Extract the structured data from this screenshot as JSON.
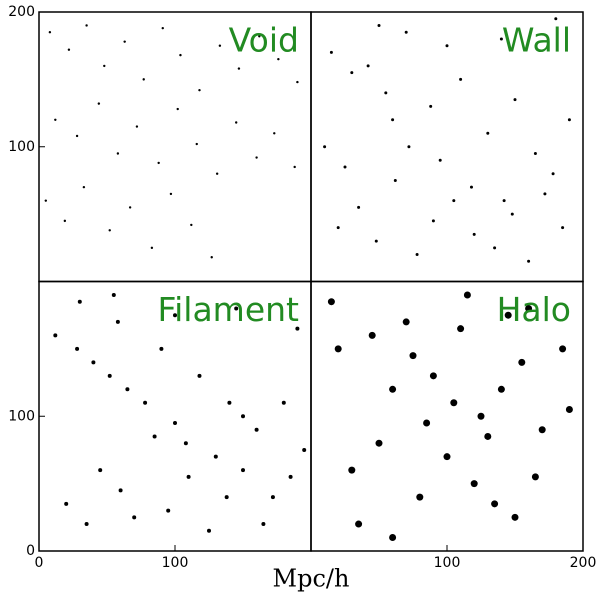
{
  "chart_data": [
    {
      "type": "scatter",
      "title": "Void",
      "color": "#000000",
      "title_color": "#228b22",
      "marker_size": 1.2,
      "x": [
        8,
        22,
        35,
        48,
        63,
        77,
        91,
        104,
        118,
        133,
        147,
        162,
        176,
        190,
        12,
        28,
        44,
        58,
        72,
        88,
        102,
        116,
        131,
        145,
        160,
        173,
        188,
        5,
        19,
        33,
        52,
        67,
        83,
        97,
        112,
        127
      ],
      "y": [
        185,
        172,
        190,
        160,
        178,
        150,
        188,
        168,
        142,
        175,
        158,
        182,
        165,
        148,
        120,
        108,
        132,
        95,
        115,
        88,
        128,
        102,
        80,
        118,
        92,
        110,
        85,
        60,
        45,
        70,
        38,
        55,
        25,
        65,
        42,
        18
      ],
      "xlim": [
        0,
        200
      ],
      "ylim": [
        0,
        200
      ],
      "xticks": [],
      "yticks": [
        100,
        200
      ]
    },
    {
      "type": "scatter",
      "title": "Wall",
      "color": "#000000",
      "title_color": "#228b22",
      "marker_size": 1.5,
      "x": [
        15,
        30,
        42,
        55,
        60,
        72,
        88,
        95,
        110,
        118,
        130,
        142,
        150,
        165,
        178,
        190,
        20,
        35,
        48,
        62,
        78,
        90,
        105,
        120,
        135,
        148,
        160,
        172,
        185,
        10,
        25,
        50,
        70,
        100,
        140,
        180
      ],
      "y": [
        170,
        155,
        160,
        140,
        120,
        100,
        130,
        90,
        150,
        70,
        110,
        60,
        135,
        95,
        80,
        120,
        40,
        55,
        30,
        75,
        20,
        45,
        60,
        35,
        25,
        50,
        15,
        65,
        40,
        100,
        85,
        190,
        185,
        175,
        180,
        195
      ],
      "xlim": [
        0,
        200
      ],
      "ylim": [
        0,
        200
      ],
      "xticks": [],
      "yticks": []
    },
    {
      "type": "scatter",
      "title": "Filament",
      "color": "#000000",
      "title_color": "#228b22",
      "marker_size": 2,
      "x": [
        12,
        28,
        40,
        52,
        58,
        65,
        78,
        90,
        100,
        108,
        118,
        130,
        140,
        150,
        160,
        172,
        185,
        195,
        20,
        35,
        45,
        60,
        70,
        85,
        95,
        110,
        125,
        138,
        150,
        165,
        180,
        30,
        55,
        100,
        145,
        190
      ],
      "y": [
        160,
        150,
        140,
        130,
        170,
        120,
        110,
        150,
        95,
        80,
        130,
        70,
        110,
        60,
        90,
        40,
        55,
        75,
        35,
        20,
        60,
        45,
        25,
        85,
        30,
        55,
        15,
        40,
        100,
        20,
        110,
        185,
        190,
        175,
        180,
        165
      ],
      "xlim": [
        0,
        200
      ],
      "ylim": [
        0,
        200
      ],
      "xticks": [
        0,
        100
      ],
      "yticks": [
        0,
        100
      ]
    },
    {
      "type": "scatter",
      "title": "Halo",
      "color": "#000000",
      "title_color": "#228b22",
      "marker_size": 3.5,
      "x": [
        20,
        45,
        60,
        75,
        90,
        110,
        125,
        140,
        155,
        170,
        185,
        30,
        50,
        80,
        100,
        120,
        135,
        150,
        165,
        35,
        60,
        85,
        105,
        130,
        160,
        190,
        15,
        70,
        115,
        145
      ],
      "y": [
        150,
        160,
        120,
        145,
        130,
        165,
        100,
        120,
        140,
        90,
        150,
        60,
        80,
        40,
        70,
        50,
        35,
        25,
        55,
        20,
        10,
        95,
        110,
        85,
        180,
        105,
        185,
        170,
        190,
        175
      ],
      "xlim": [
        0,
        200
      ],
      "ylim": [
        0,
        200
      ],
      "xticks": [
        100,
        200
      ],
      "yticks": []
    }
  ],
  "xlabel": "Mpc/h"
}
